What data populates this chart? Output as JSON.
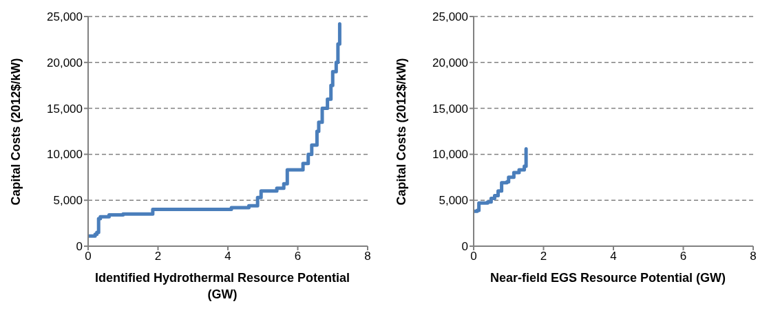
{
  "chart_data": [
    {
      "type": "step",
      "xlabel": "Identified Hydrothermal Resource Potential (GW)",
      "ylabel": "Capital Costs (2012$/kW)",
      "xlim": [
        0,
        8
      ],
      "xticks": [
        0,
        2,
        4,
        6,
        8
      ],
      "ylim": [
        0,
        25000
      ],
      "yticks": [
        0,
        {
          "value": 5000,
          "label": "5,000"
        },
        {
          "value": 10000,
          "label": "10,000"
        },
        {
          "value": 15000,
          "label": "15,000"
        },
        {
          "value": 20000,
          "label": "20,000"
        },
        {
          "value": 25000,
          "label": "25,000"
        }
      ],
      "grid": "y",
      "legend": false,
      "marker": "none",
      "line_style": "solid",
      "series": [
        {
          "color": "#4a7ebb",
          "x": [
            0,
            0.2,
            0.25,
            0.3,
            0.35,
            0.6,
            1.0,
            1.8,
            1.85,
            4.0,
            4.1,
            4.6,
            4.8,
            4.85,
            4.95,
            5.3,
            5.4,
            5.6,
            5.7,
            6.1,
            6.15,
            6.3,
            6.4,
            6.55,
            6.6,
            6.7,
            6.85,
            6.95,
            7.0,
            7.1,
            7.15,
            7.2
          ],
          "values": [
            1100,
            1300,
            1500,
            3000,
            3200,
            3400,
            3500,
            3500,
            4000,
            4000,
            4200,
            4400,
            4400,
            5300,
            6000,
            6000,
            6300,
            6800,
            8300,
            8300,
            9000,
            10000,
            11000,
            12500,
            13500,
            15000,
            16000,
            17500,
            19000,
            20000,
            22000,
            24200
          ]
        }
      ]
    },
    {
      "type": "step",
      "xlabel": "Near-field EGS Resource Potential (GW)",
      "ylabel": "Capital Costs (2012$/kW)",
      "xlim": [
        0,
        8
      ],
      "xticks": [
        0,
        2,
        4,
        6,
        8
      ],
      "ylim": [
        0,
        25000
      ],
      "yticks": [
        0,
        {
          "value": 5000,
          "label": "5,000"
        },
        {
          "value": 10000,
          "label": "10,000"
        },
        {
          "value": 15000,
          "label": "15,000"
        },
        {
          "value": 20000,
          "label": "20,000"
        },
        {
          "value": 25000,
          "label": "25,000"
        }
      ],
      "grid": "y",
      "legend": false,
      "marker": "none",
      "line_style": "solid",
      "series": [
        {
          "color": "#4a7ebb",
          "x": [
            0,
            0.1,
            0.15,
            0.4,
            0.5,
            0.6,
            0.7,
            0.8,
            0.95,
            1.0,
            1.15,
            1.3,
            1.45,
            1.5
          ],
          "values": [
            3800,
            3900,
            4700,
            4800,
            5200,
            5500,
            6000,
            6900,
            7000,
            7500,
            8000,
            8300,
            8700,
            10600
          ]
        }
      ]
    }
  ]
}
